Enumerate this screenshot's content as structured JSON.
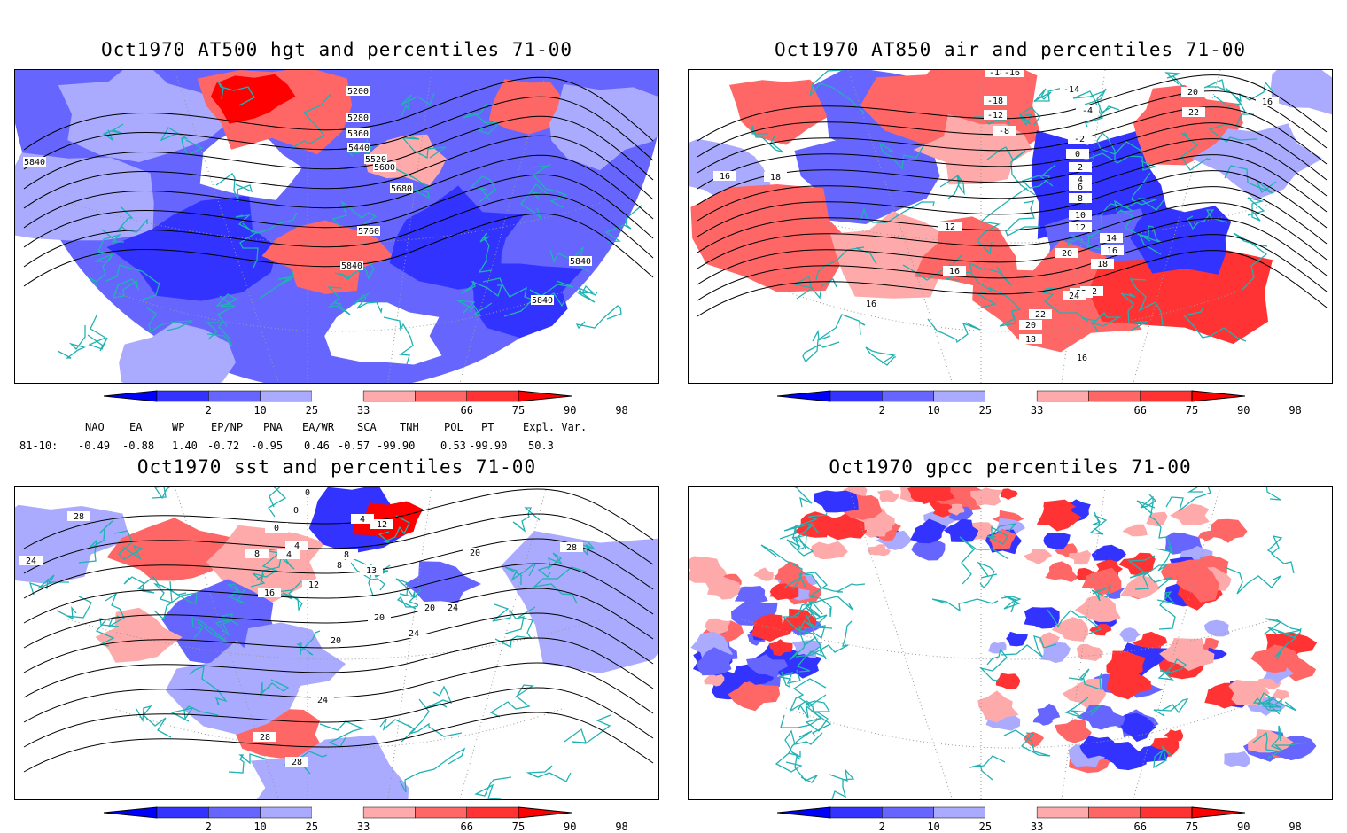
{
  "panels": [
    {
      "title": "Oct1970 AT500 hgt and percentiles 71-00",
      "contour_labels": [
        "5200",
        "5280",
        "5360",
        "5440",
        "5520",
        "5600",
        "5680",
        "5760",
        "5840",
        "5840",
        "5840",
        "5840"
      ]
    },
    {
      "title": "Oct1970 AT850 air and percentiles 71-00",
      "contour_labels": [
        "-18",
        "-16",
        "-14",
        "-18",
        "-12",
        "-4",
        "-8",
        "-2",
        "0",
        "2",
        "4",
        "6",
        "8",
        "10",
        "12",
        "14",
        "16",
        "18",
        "20",
        "22",
        "22",
        "24",
        "22",
        "20",
        "18",
        "16",
        "16",
        "16",
        "18",
        "20",
        "22",
        "14",
        "16",
        "12",
        "16"
      ]
    },
    {
      "title": "Oct1970 sst and percentiles 71-00",
      "contour_labels": [
        "28",
        "24",
        "0",
        "0",
        "0",
        "4",
        "8",
        "4",
        "4",
        "8",
        "8",
        "12",
        "16",
        "12",
        "13",
        "20",
        "20",
        "20",
        "24",
        "24",
        "28",
        "28",
        "20",
        "24",
        "28"
      ]
    },
    {
      "title": "Oct1970 gpcc percentiles 71-00",
      "contour_labels": []
    }
  ],
  "colorbar": {
    "ticks": [
      "2",
      "10",
      "25",
      "33",
      "66",
      "75",
      "90",
      "98"
    ],
    "colors": {
      "lt2": "#0000ff",
      "b2_10": "#3333ff",
      "b10_25": "#6666ff",
      "b25_33": "#aaaaff",
      "b33_66": "#ffffff",
      "r66_75": "#ffaaaa",
      "r75_90": "#ff6666",
      "r90_98": "#ff3333",
      "gt98": "#ff0000"
    }
  },
  "indices": {
    "headers": [
      "NAO",
      "EA",
      "WP",
      "EP/NP",
      "PNA",
      "EA/WR",
      "SCA",
      "TNH",
      "POL",
      "PT",
      "Expl. Var."
    ],
    "row_label": "81-10:",
    "values": [
      "-0.49",
      "-0.88",
      "1.40",
      "-0.72",
      "-0.95",
      "0.46",
      "-0.57",
      "-99.90",
      "0.53",
      "-99.90",
      "50.3"
    ]
  },
  "colors": {
    "coast": "#20b2b2",
    "contour": "#000000",
    "grid": "#999999"
  }
}
